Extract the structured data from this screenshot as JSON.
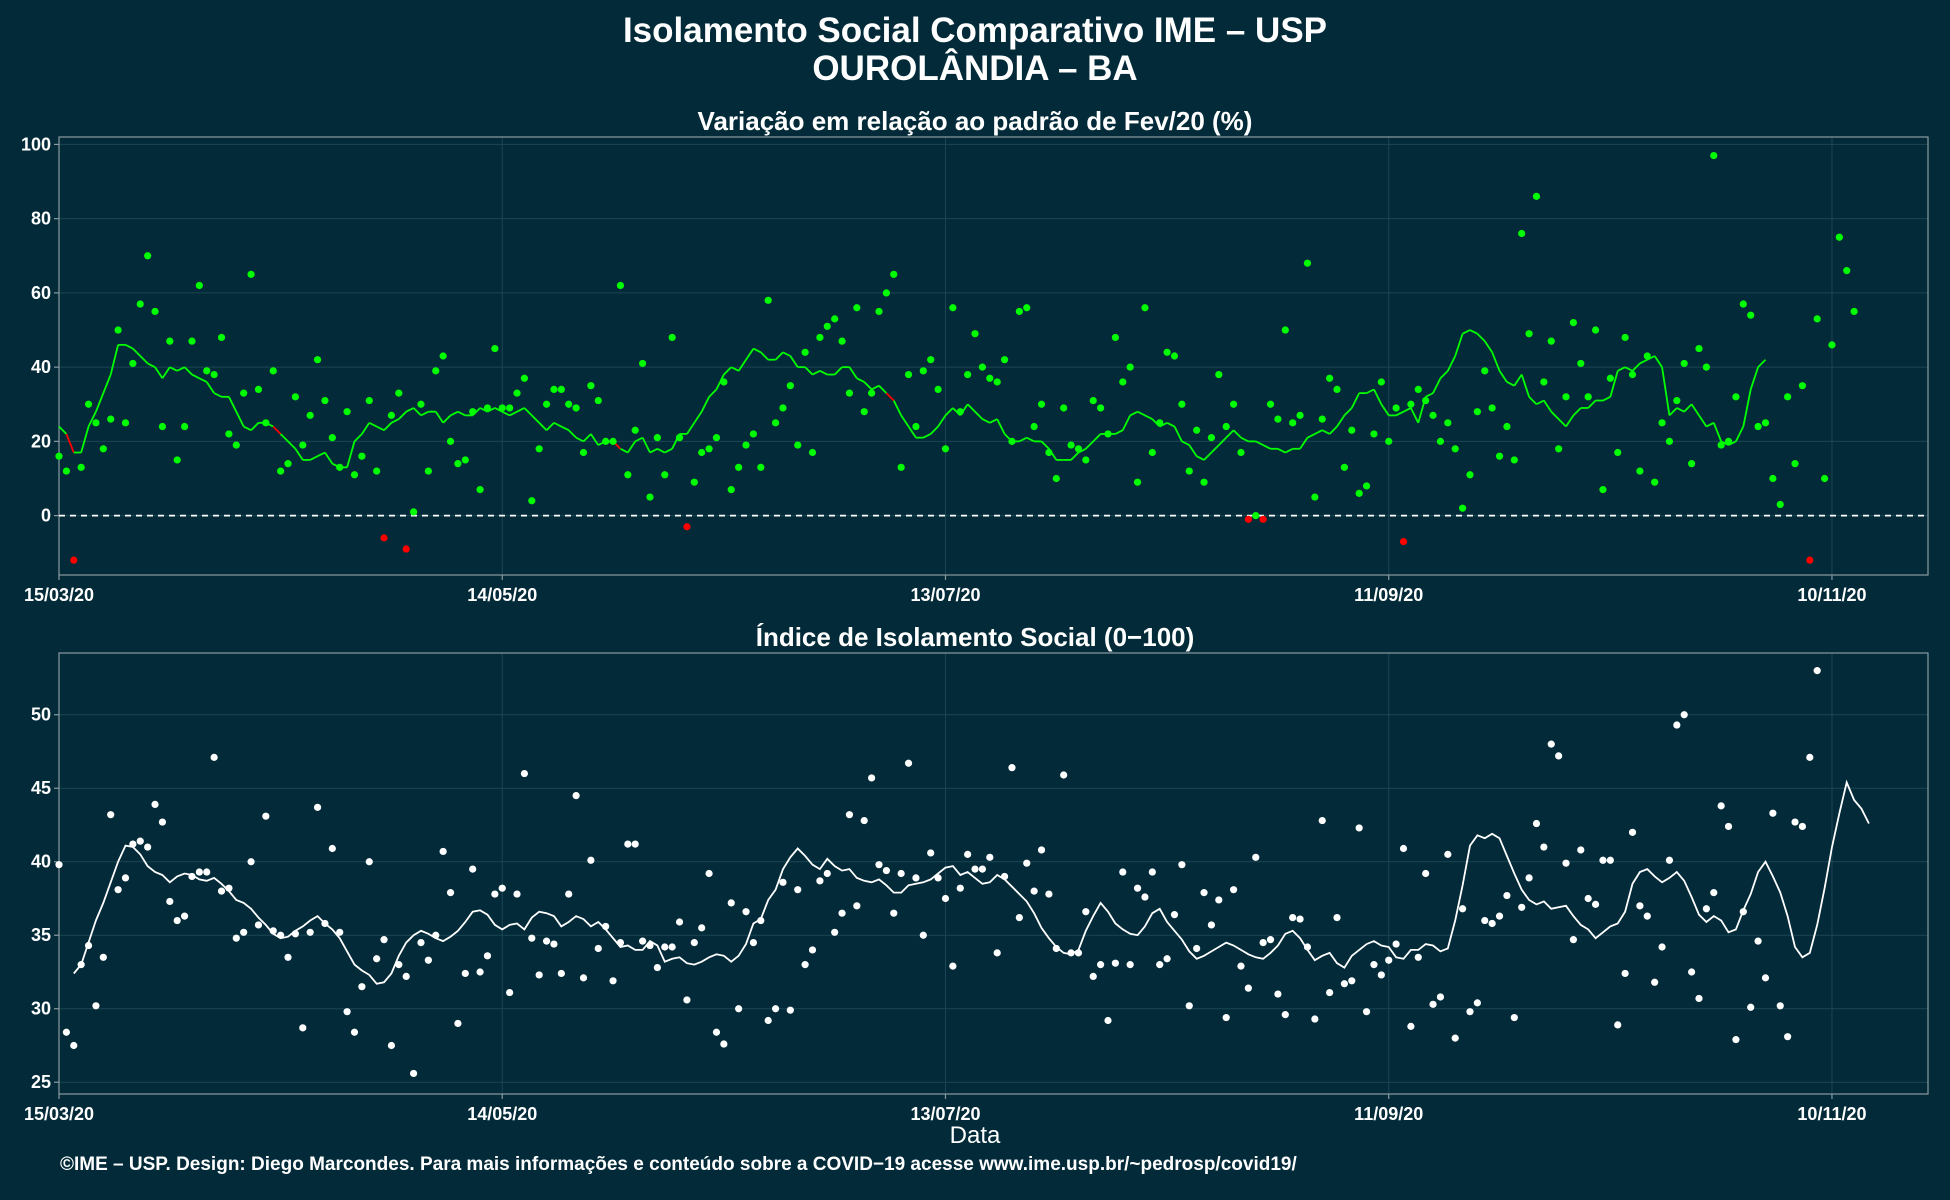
{
  "title_line1": "Isolamento Social Comparativo IME – USP",
  "title_line2": "OUROLÂNDIA – BA",
  "xlabel": "Data",
  "footer": "©IME – USP. Design: Diego Marcondes. Para mais informações e conteúdo sobre a COVID−19 acesse www.ime.usp.br/~pedrosp/covid19/",
  "colors": {
    "background": "#022a38",
    "panel_border": "#8b9aa0",
    "grid": "#1d4654",
    "green": "#00ff00",
    "red": "#ff0000",
    "white": "#ffffff"
  },
  "chart_data": [
    {
      "type": "scatter",
      "title": "Variação em relação ao padrão de Fev/20 (%)",
      "x_start": "15/03/20",
      "x_tick_labels": [
        "15/03/20",
        "14/05/20",
        "13/07/20",
        "11/09/20",
        "10/11/20"
      ],
      "y_ticks": [
        0,
        20,
        40,
        60,
        80,
        100
      ],
      "ylim": [
        -16,
        102
      ],
      "reference_line": 0,
      "grid": true,
      "series": [
        {
          "kind": "points",
          "color_rule": "green if >= 0, red if < 0",
          "values": [
            16,
            12,
            -12,
            13,
            30,
            25,
            18,
            26,
            50,
            25,
            41,
            57,
            70,
            55,
            24,
            47,
            15,
            24,
            47,
            62,
            39,
            38,
            48,
            22,
            19,
            33,
            65,
            34,
            25,
            39,
            12,
            14,
            32,
            19,
            27,
            42,
            31,
            21,
            13,
            28,
            11,
            16,
            31,
            12,
            -6,
            27,
            33,
            -9,
            1,
            30,
            12,
            39,
            43,
            20,
            14,
            15,
            28,
            7,
            29,
            45,
            29,
            29,
            33,
            37,
            4,
            18,
            30,
            34,
            34,
            30,
            29,
            17,
            35,
            31,
            20,
            20,
            62,
            11,
            23,
            41,
            5,
            21,
            11,
            48,
            21,
            -3,
            9,
            17,
            18,
            21,
            36,
            7,
            13,
            19,
            22,
            13,
            58,
            25,
            29,
            35,
            19,
            44,
            17,
            48,
            51,
            53,
            47,
            33,
            56,
            28,
            33,
            55,
            60,
            65,
            13,
            38,
            24,
            39,
            42,
            34,
            18,
            56,
            28,
            38,
            49,
            40,
            37,
            36,
            42,
            20,
            55,
            56,
            24,
            30,
            17,
            10,
            29,
            19,
            18,
            15,
            31,
            29,
            22,
            48,
            36,
            40,
            9,
            56,
            17,
            25,
            44,
            43,
            30,
            12,
            23,
            9,
            21,
            38,
            24,
            30,
            17,
            -1,
            0,
            -1,
            30,
            26,
            50,
            25,
            27,
            68,
            5,
            26,
            37,
            34,
            13,
            23,
            6,
            8,
            22,
            36,
            20,
            29,
            -7,
            30,
            34,
            31,
            27,
            20,
            25,
            18,
            2,
            11,
            28,
            39,
            29,
            16,
            24,
            15,
            76,
            49,
            86,
            36,
            47,
            18,
            32,
            52,
            41,
            32,
            50,
            7,
            37,
            17,
            48,
            38,
            12,
            43,
            9,
            25,
            20,
            31,
            41,
            14,
            45,
            40,
            97,
            19,
            20,
            32,
            57,
            54,
            24,
            25,
            10,
            3,
            32,
            14,
            35,
            -12,
            53,
            10,
            46,
            75,
            66,
            55
          ]
        },
        {
          "kind": "line",
          "name": "",
          "color_rule": "green segments, red where decreasing",
          "values": [
            24,
            22,
            17,
            17,
            24,
            28,
            33,
            38,
            46,
            46,
            45,
            43,
            41,
            40,
            37,
            40,
            39,
            40,
            38,
            37,
            36,
            33,
            32,
            32,
            28,
            24,
            23,
            25,
            25,
            24,
            22,
            20,
            18,
            15,
            15,
            16,
            17,
            14,
            13,
            13,
            20,
            22,
            25,
            24,
            23,
            25,
            26,
            28,
            29,
            27,
            28,
            28,
            25,
            27,
            28,
            27,
            27,
            29,
            28,
            29,
            28,
            27,
            28,
            29,
            27,
            25,
            23,
            25,
            24,
            23,
            21,
            20,
            22,
            19,
            20,
            20,
            18,
            17,
            20,
            21,
            17,
            18,
            17,
            18,
            22,
            22,
            25,
            28,
            32,
            34,
            38,
            40,
            39,
            42,
            45,
            44,
            42,
            42,
            44,
            43,
            40,
            40,
            38,
            39,
            38,
            38,
            40,
            40,
            37,
            36,
            34,
            35,
            33,
            31,
            27,
            24,
            21,
            21,
            22,
            24,
            27,
            29,
            27,
            30,
            28,
            26,
            25,
            26,
            22,
            20,
            20,
            21,
            20,
            20,
            18,
            15,
            15,
            15,
            17,
            18,
            20,
            22,
            22,
            22,
            23,
            27,
            28,
            27,
            26,
            24,
            25,
            24,
            20,
            19,
            16,
            15,
            17,
            19,
            21,
            23,
            21,
            20,
            20,
            19,
            18,
            18,
            17,
            18,
            18,
            21,
            22,
            23,
            22,
            24,
            27,
            29,
            33,
            33,
            34,
            30,
            27,
            27,
            28,
            29,
            25,
            32,
            33,
            37,
            39,
            43,
            49,
            50,
            49,
            47,
            44,
            39,
            36,
            35,
            38,
            32,
            30,
            31,
            28,
            26,
            24,
            27,
            29,
            29,
            31,
            31,
            32,
            39,
            40,
            39,
            41,
            42,
            43,
            40,
            27,
            29,
            28,
            30,
            27,
            24,
            25,
            20,
            19,
            20,
            24,
            34,
            40,
            42
          ]
        }
      ]
    },
    {
      "type": "scatter",
      "title": "Índice de Isolamento Social (0−100)",
      "x_start": "15/03/20",
      "x_tick_labels": [
        "15/03/20",
        "14/05/20",
        "13/07/20",
        "11/09/20",
        "10/11/20"
      ],
      "y_ticks": [
        25,
        30,
        35,
        40,
        45,
        50
      ],
      "ylim": [
        24.2,
        54.2
      ],
      "grid": true,
      "series": [
        {
          "kind": "points",
          "color_rule": "white",
          "values": [
            39.8,
            28.4,
            27.5,
            33.0,
            34.3,
            30.2,
            33.5,
            43.2,
            38.1,
            38.9,
            41.2,
            41.4,
            41.0,
            43.9,
            42.7,
            37.3,
            36.0,
            36.3,
            39.0,
            39.3,
            39.3,
            47.1,
            38.0,
            38.2,
            34.8,
            35.2,
            40.0,
            35.7,
            43.1,
            35.3,
            35.0,
            33.5,
            35.1,
            28.7,
            35.2,
            43.7,
            35.8,
            40.9,
            35.2,
            29.8,
            28.4,
            31.5,
            40.0,
            33.4,
            34.7,
            27.5,
            33.0,
            32.2,
            25.6,
            34.5,
            33.3,
            35.0,
            40.7,
            37.9,
            29.0,
            32.4,
            39.5,
            32.5,
            33.6,
            37.8,
            38.2,
            31.1,
            37.8,
            46.0,
            34.8,
            32.3,
            34.6,
            34.4,
            32.4,
            37.8,
            44.5,
            32.1,
            40.1,
            34.1,
            35.6,
            31.9,
            34.5,
            41.2,
            41.2,
            34.6,
            34.3,
            32.8,
            34.2,
            34.2,
            35.9,
            30.6,
            34.5,
            35.5,
            39.2,
            28.4,
            27.6,
            37.2,
            30.0,
            36.6,
            34.5,
            36.0,
            29.2,
            30.0,
            38.6,
            29.9,
            38.1,
            33.0,
            34.0,
            38.7,
            39.2,
            35.2,
            36.5,
            43.2,
            37.0,
            42.8,
            45.7,
            39.8,
            39.4,
            36.5,
            39.2,
            46.7,
            38.9,
            35.0,
            40.6,
            38.9,
            37.5,
            32.9,
            38.2,
            40.5,
            39.5,
            39.5,
            40.3,
            33.8,
            39.0,
            46.4,
            36.2,
            39.9,
            38.0,
            40.8,
            37.8,
            34.1,
            45.9,
            33.8,
            33.8,
            36.6,
            32.2,
            33.0,
            29.2,
            33.1,
            39.3,
            33.0,
            38.2,
            37.6,
            39.3,
            33.0,
            33.4,
            36.4,
            39.8,
            30.2,
            34.1,
            37.9,
            35.7,
            37.4,
            29.4,
            38.1,
            32.9,
            31.4,
            40.3,
            34.5,
            34.7,
            31.0,
            29.6,
            36.2,
            36.1,
            34.2,
            29.3,
            42.8,
            31.1,
            36.2,
            31.7,
            31.9,
            42.3,
            29.8,
            33.0,
            32.3,
            33.3,
            34.4,
            40.9,
            28.8,
            33.5,
            39.2,
            30.3,
            30.8,
            40.5,
            28.0,
            36.8,
            29.8,
            30.4,
            36.0,
            35.8,
            36.3,
            37.7,
            29.4,
            36.9,
            38.9,
            42.6,
            41.0,
            48.0,
            47.2,
            39.9,
            34.7,
            40.8,
            37.5,
            37.1,
            40.1,
            40.1,
            28.9,
            32.4,
            42.0,
            37.0,
            36.3,
            31.8,
            34.2,
            40.1,
            49.3,
            50.0,
            32.5,
            30.7,
            36.8,
            37.9,
            43.8,
            42.4,
            27.9,
            36.6,
            30.1,
            34.6,
            32.1,
            43.3,
            30.2,
            28.1,
            42.7,
            42.4,
            47.1,
            53.0
          ]
        },
        {
          "kind": "line",
          "name": "",
          "color_rule": "white",
          "values": [
            32.4,
            33.0,
            34.5,
            36.0,
            37.2,
            38.6,
            40.0,
            41.1,
            41.0,
            40.5,
            39.7,
            39.3,
            39.1,
            38.6,
            39.0,
            39.2,
            39.1,
            38.8,
            38.7,
            38.9,
            38.5,
            38.0,
            37.4,
            37.2,
            36.8,
            36.2,
            35.7,
            35.1,
            34.8,
            34.9,
            35.3,
            35.6,
            36.0,
            36.3,
            35.8,
            35.4,
            34.8,
            33.9,
            33.0,
            32.6,
            32.3,
            31.7,
            31.8,
            32.4,
            33.6,
            34.5,
            35.0,
            35.3,
            35.1,
            34.8,
            34.6,
            34.9,
            35.3,
            35.9,
            36.6,
            36.7,
            36.4,
            35.7,
            35.4,
            35.7,
            35.8,
            35.4,
            36.2,
            36.6,
            36.5,
            36.3,
            35.6,
            35.9,
            36.3,
            36.1,
            35.6,
            35.9,
            35.4,
            34.8,
            34.2,
            34.3,
            34.0,
            34.0,
            34.6,
            34.3,
            33.2,
            33.4,
            33.5,
            33.1,
            33.0,
            33.2,
            33.5,
            33.7,
            33.6,
            33.2,
            33.6,
            34.4,
            35.8,
            36.1,
            37.4,
            38.1,
            39.5,
            40.3,
            40.9,
            40.4,
            39.8,
            39.5,
            40.2,
            39.7,
            39.4,
            39.5,
            38.9,
            38.7,
            38.6,
            38.8,
            38.4,
            37.9,
            37.9,
            38.4,
            38.5,
            38.6,
            38.8,
            39.2,
            39.6,
            39.7,
            39.1,
            39.3,
            38.9,
            38.5,
            38.6,
            39.1,
            38.8,
            38.3,
            37.8,
            37.3,
            36.5,
            35.5,
            34.8,
            34.2,
            33.8,
            33.7,
            34.0,
            35.3,
            36.3,
            37.2,
            36.6,
            35.8,
            35.4,
            35.1,
            35.0,
            35.6,
            36.5,
            36.8,
            35.9,
            35.3,
            34.7,
            33.9,
            33.4,
            33.6,
            33.9,
            34.2,
            34.5,
            34.3,
            34.0,
            33.7,
            33.5,
            33.4,
            33.8,
            34.3,
            35.1,
            35.3,
            34.8,
            34.0,
            33.3,
            33.6,
            33.8,
            33.1,
            32.8,
            33.6,
            34.0,
            34.4,
            34.6,
            34.3,
            34.2,
            33.5,
            33.4,
            34.0,
            34.0,
            34.4,
            34.3,
            33.9,
            34.1,
            36.0,
            38.4,
            41.1,
            41.8,
            41.6,
            41.9,
            41.6,
            40.4,
            39.2,
            38.1,
            37.4,
            37.1,
            37.3,
            36.8,
            36.9,
            37.0,
            36.3,
            35.7,
            35.4,
            34.8,
            35.2,
            35.6,
            35.8,
            36.6,
            38.5,
            39.3,
            39.5,
            39.0,
            38.6,
            38.9,
            39.3,
            38.7,
            37.6,
            36.4,
            35.9,
            36.3,
            36.0,
            35.2,
            35.4,
            36.7,
            37.8,
            39.3,
            40.0,
            39.0,
            37.9,
            36.3,
            34.2,
            33.5,
            33.8,
            35.7,
            38.2,
            41.0,
            43.3,
            45.4,
            44.2,
            43.6,
            42.6
          ]
        }
      ]
    }
  ]
}
